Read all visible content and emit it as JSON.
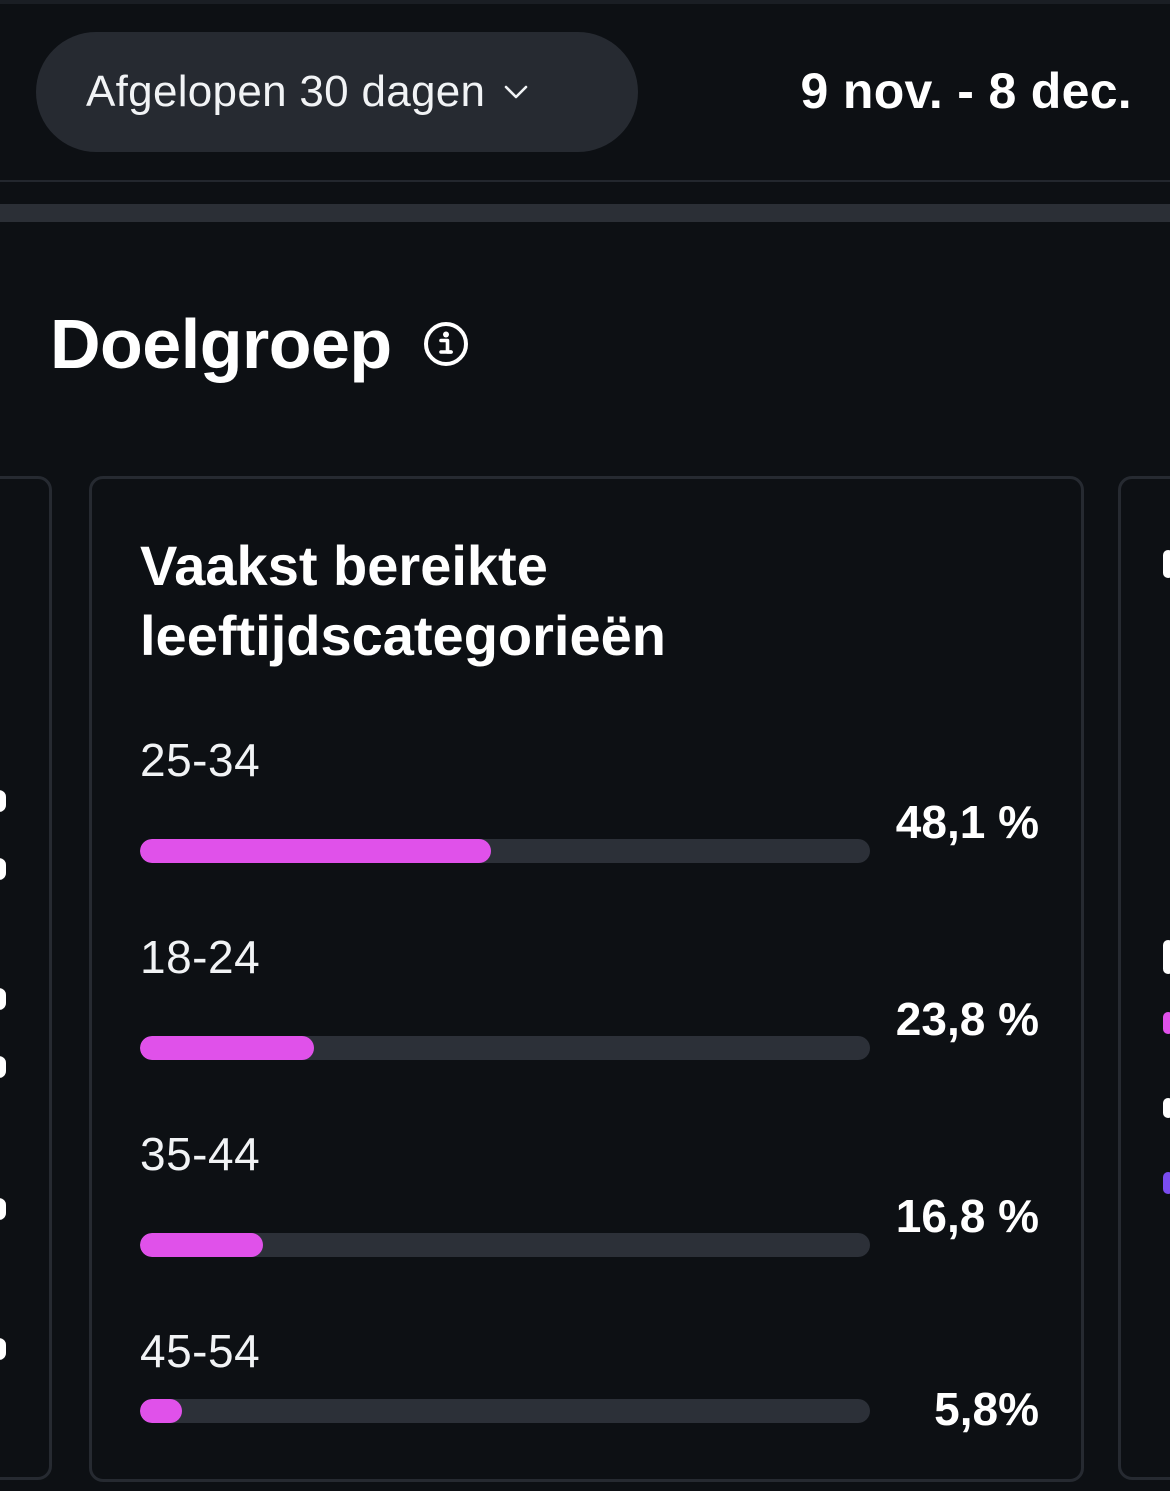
{
  "header": {
    "range_label": "Afgelopen 30 dagen",
    "date_range": "9 nov. - 8 dec."
  },
  "section": {
    "title": "Doelgroep"
  },
  "age_card": {
    "title": "Vaakst bereikte leeftijdscategorieën",
    "rows": [
      {
        "category": "25-34",
        "percent_label": "48,1 %",
        "value": 48.1
      },
      {
        "category": "18-24",
        "percent_label": "23,8 %",
        "value": 23.8
      },
      {
        "category": "35-44",
        "percent_label": "16,8 %",
        "value": 16.8
      },
      {
        "category": "45-54",
        "percent_label": "5,8%",
        "value": 5.8
      }
    ]
  },
  "colors": {
    "background": "#0d1014",
    "pill": "#262a31",
    "bar_fill": "#e051ea",
    "bar_track": "#2c3038",
    "card_border": "#262a31"
  },
  "icons": {
    "range_dropdown": "chevron-down-icon",
    "section_info": "info-icon"
  }
}
